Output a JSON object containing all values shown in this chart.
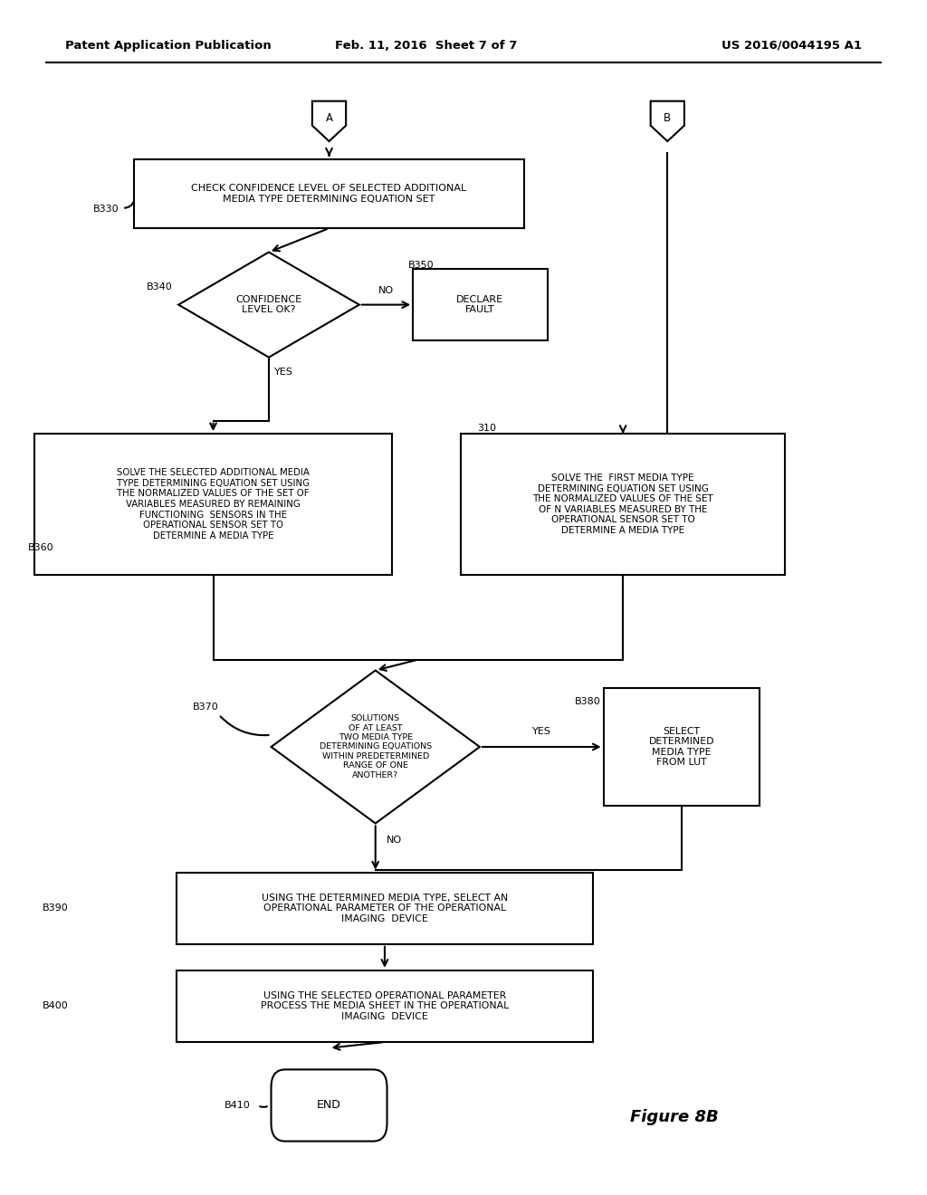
{
  "header_left": "Patent Application Publication",
  "header_middle": "Feb. 11, 2016  Sheet 7 of 7",
  "header_right": "US 2016/0044195 A1",
  "figure_label": "Figure 8B",
  "bg_color": "#ffffff",
  "line_color": "#000000"
}
